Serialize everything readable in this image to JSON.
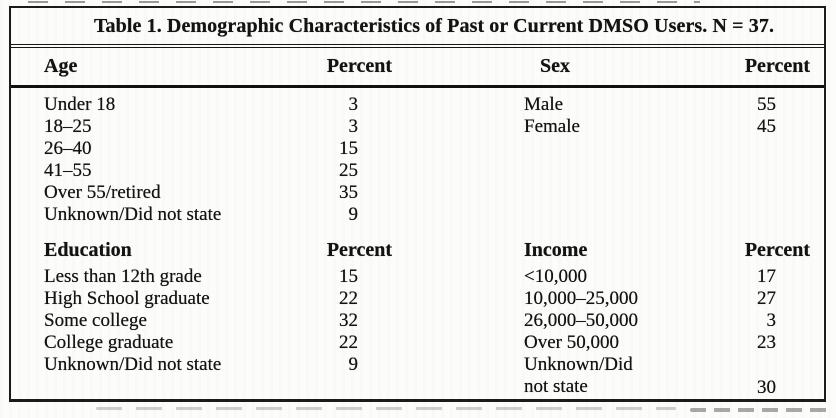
{
  "title": "Table 1. Demographic Characteristics of Past or Current DMSO Users. N = 37.",
  "colors": {
    "ink": "#131313",
    "paper": "#fcfcfa"
  },
  "sections": [
    {
      "left": {
        "header": "Age",
        "value_header": "Percent",
        "rows": [
          {
            "label": "Under 18",
            "percent": "3"
          },
          {
            "label": "18–25",
            "percent": "3"
          },
          {
            "label": "26–40",
            "percent": "15"
          },
          {
            "label": "41–55",
            "percent": "25"
          },
          {
            "label": "Over 55/retired",
            "percent": "35"
          },
          {
            "label": "Unknown/Did not state",
            "percent": "9"
          }
        ]
      },
      "right": {
        "header": "Sex",
        "value_header": "Percent",
        "rows": [
          {
            "label": "Male",
            "percent": "55"
          },
          {
            "label": "Female",
            "percent": "45"
          }
        ]
      }
    },
    {
      "left": {
        "header": "Education",
        "value_header": "Percent",
        "rows": [
          {
            "label": "Less than 12th grade",
            "percent": "15"
          },
          {
            "label": "High School graduate",
            "percent": "22"
          },
          {
            "label": "Some college",
            "percent": "32"
          },
          {
            "label": "College graduate",
            "percent": "22"
          },
          {
            "label": "Unknown/Did not state",
            "percent": "9"
          }
        ]
      },
      "right": {
        "header": "Income",
        "value_header": "Percent",
        "rows": [
          {
            "label": "<10,000",
            "percent": "17"
          },
          {
            "label": "10,000–25,000",
            "percent": "27"
          },
          {
            "label": "26,000–50,000",
            "percent": "3"
          },
          {
            "label": "Over 50,000",
            "percent": "23"
          },
          {
            "label": "Unknown/Did not state",
            "percent": "30"
          }
        ]
      }
    }
  ],
  "chart_data": {
    "type": "table",
    "title": "Table 1. Demographic Characteristics of Past or Current DMSO Users. N = 37.",
    "n": 37,
    "unit": "Percent",
    "groups": [
      {
        "category": "Age",
        "rows": [
          [
            "Under 18",
            3
          ],
          [
            "18–25",
            3
          ],
          [
            "26–40",
            15
          ],
          [
            "41–55",
            25
          ],
          [
            "Over 55/retired",
            35
          ],
          [
            "Unknown/Did not state",
            9
          ]
        ]
      },
      {
        "category": "Sex",
        "rows": [
          [
            "Male",
            55
          ],
          [
            "Female",
            45
          ]
        ]
      },
      {
        "category": "Education",
        "rows": [
          [
            "Less than 12th grade",
            15
          ],
          [
            "High School graduate",
            22
          ],
          [
            "Some college",
            32
          ],
          [
            "College graduate",
            22
          ],
          [
            "Unknown/Did not state",
            9
          ]
        ]
      },
      {
        "category": "Income",
        "rows": [
          [
            "<10,000",
            17
          ],
          [
            "10,000–25,000",
            27
          ],
          [
            "26,000–50,000",
            3
          ],
          [
            "Over 50,000",
            23
          ],
          [
            "Unknown/Did not state",
            30
          ]
        ]
      }
    ]
  }
}
